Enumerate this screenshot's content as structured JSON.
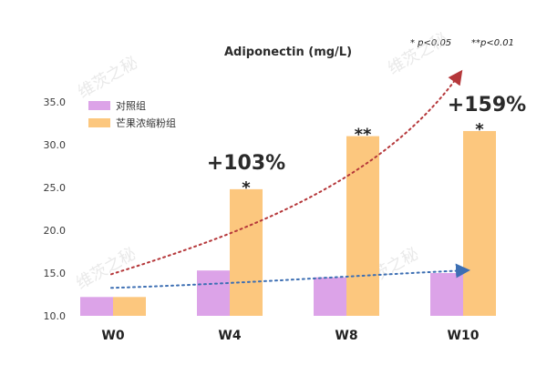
{
  "chart_data": {
    "type": "bar",
    "title": "Adiponectin (mg/L)",
    "significance_note_1": "* p<0.05",
    "significance_note_2": "**p<0.01",
    "categories": [
      "W0",
      "W4",
      "W8",
      "W10"
    ],
    "series": [
      {
        "name": "对照组",
        "color": "#dca3e8",
        "values": [
          12.2,
          15.3,
          14.5,
          15.0
        ]
      },
      {
        "name": "芒果浓缩粉组",
        "color": "#fcc77e",
        "values": [
          12.2,
          24.8,
          31.0,
          31.6
        ]
      }
    ],
    "significance": [
      "",
      "*",
      "**",
      "*"
    ],
    "annotations": [
      {
        "category": "W4",
        "text": "+103%"
      },
      {
        "category": "W10",
        "text": "+159%"
      }
    ],
    "yticks": [
      "10.0",
      "15.0",
      "20.0",
      "25.0",
      "30.0",
      "35.0"
    ],
    "ylim": [
      10,
      35
    ],
    "grid": false,
    "legend_position": "top-left",
    "trend_colors": {
      "treatment": "#b5373a",
      "control": "#3d6fb3"
    },
    "watermark": "维茨之秘"
  }
}
